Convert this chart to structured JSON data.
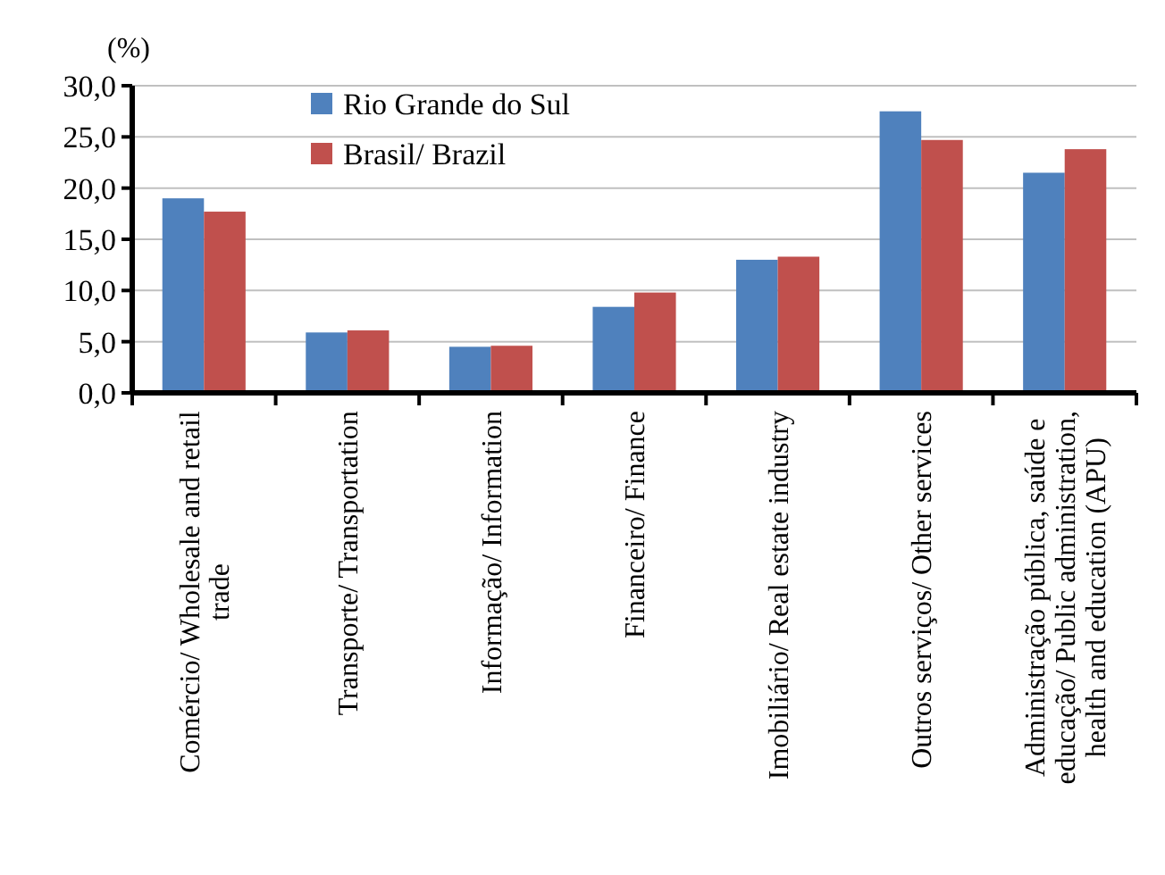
{
  "chart_data": {
    "type": "bar",
    "ylabel": "(%)",
    "categories": [
      "Comércio/ Wholesale and retail\ntrade",
      "Transporte/ Transportation",
      "Informação/ Information",
      "Financeiro/ Finance",
      "Imobiliário/ Real estate industry",
      "Outros serviços/ Other services",
      "Administração pública, saúde e\neducação/ Public administration,\nhealth and education (APU)"
    ],
    "series": [
      {
        "name": "Rio Grande do Sul",
        "color": "#4f81bd",
        "values": [
          19.0,
          5.9,
          4.5,
          8.4,
          13.0,
          27.5,
          21.5
        ]
      },
      {
        "name": "Brasil/ Brazil",
        "color": "#c0504d",
        "values": [
          17.7,
          6.1,
          4.6,
          9.8,
          13.3,
          24.7,
          23.8
        ]
      }
    ],
    "ylim": [
      0,
      30
    ],
    "yticks": [
      {
        "value": 0,
        "label": "0,0"
      },
      {
        "value": 5,
        "label": "5,0"
      },
      {
        "value": 10,
        "label": "10,0"
      },
      {
        "value": 15,
        "label": "15,0"
      },
      {
        "value": 20,
        "label": "20,0"
      },
      {
        "value": 25,
        "label": "25,0"
      },
      {
        "value": 30,
        "label": "30,0"
      }
    ],
    "grid": "y",
    "legend": "top left"
  }
}
